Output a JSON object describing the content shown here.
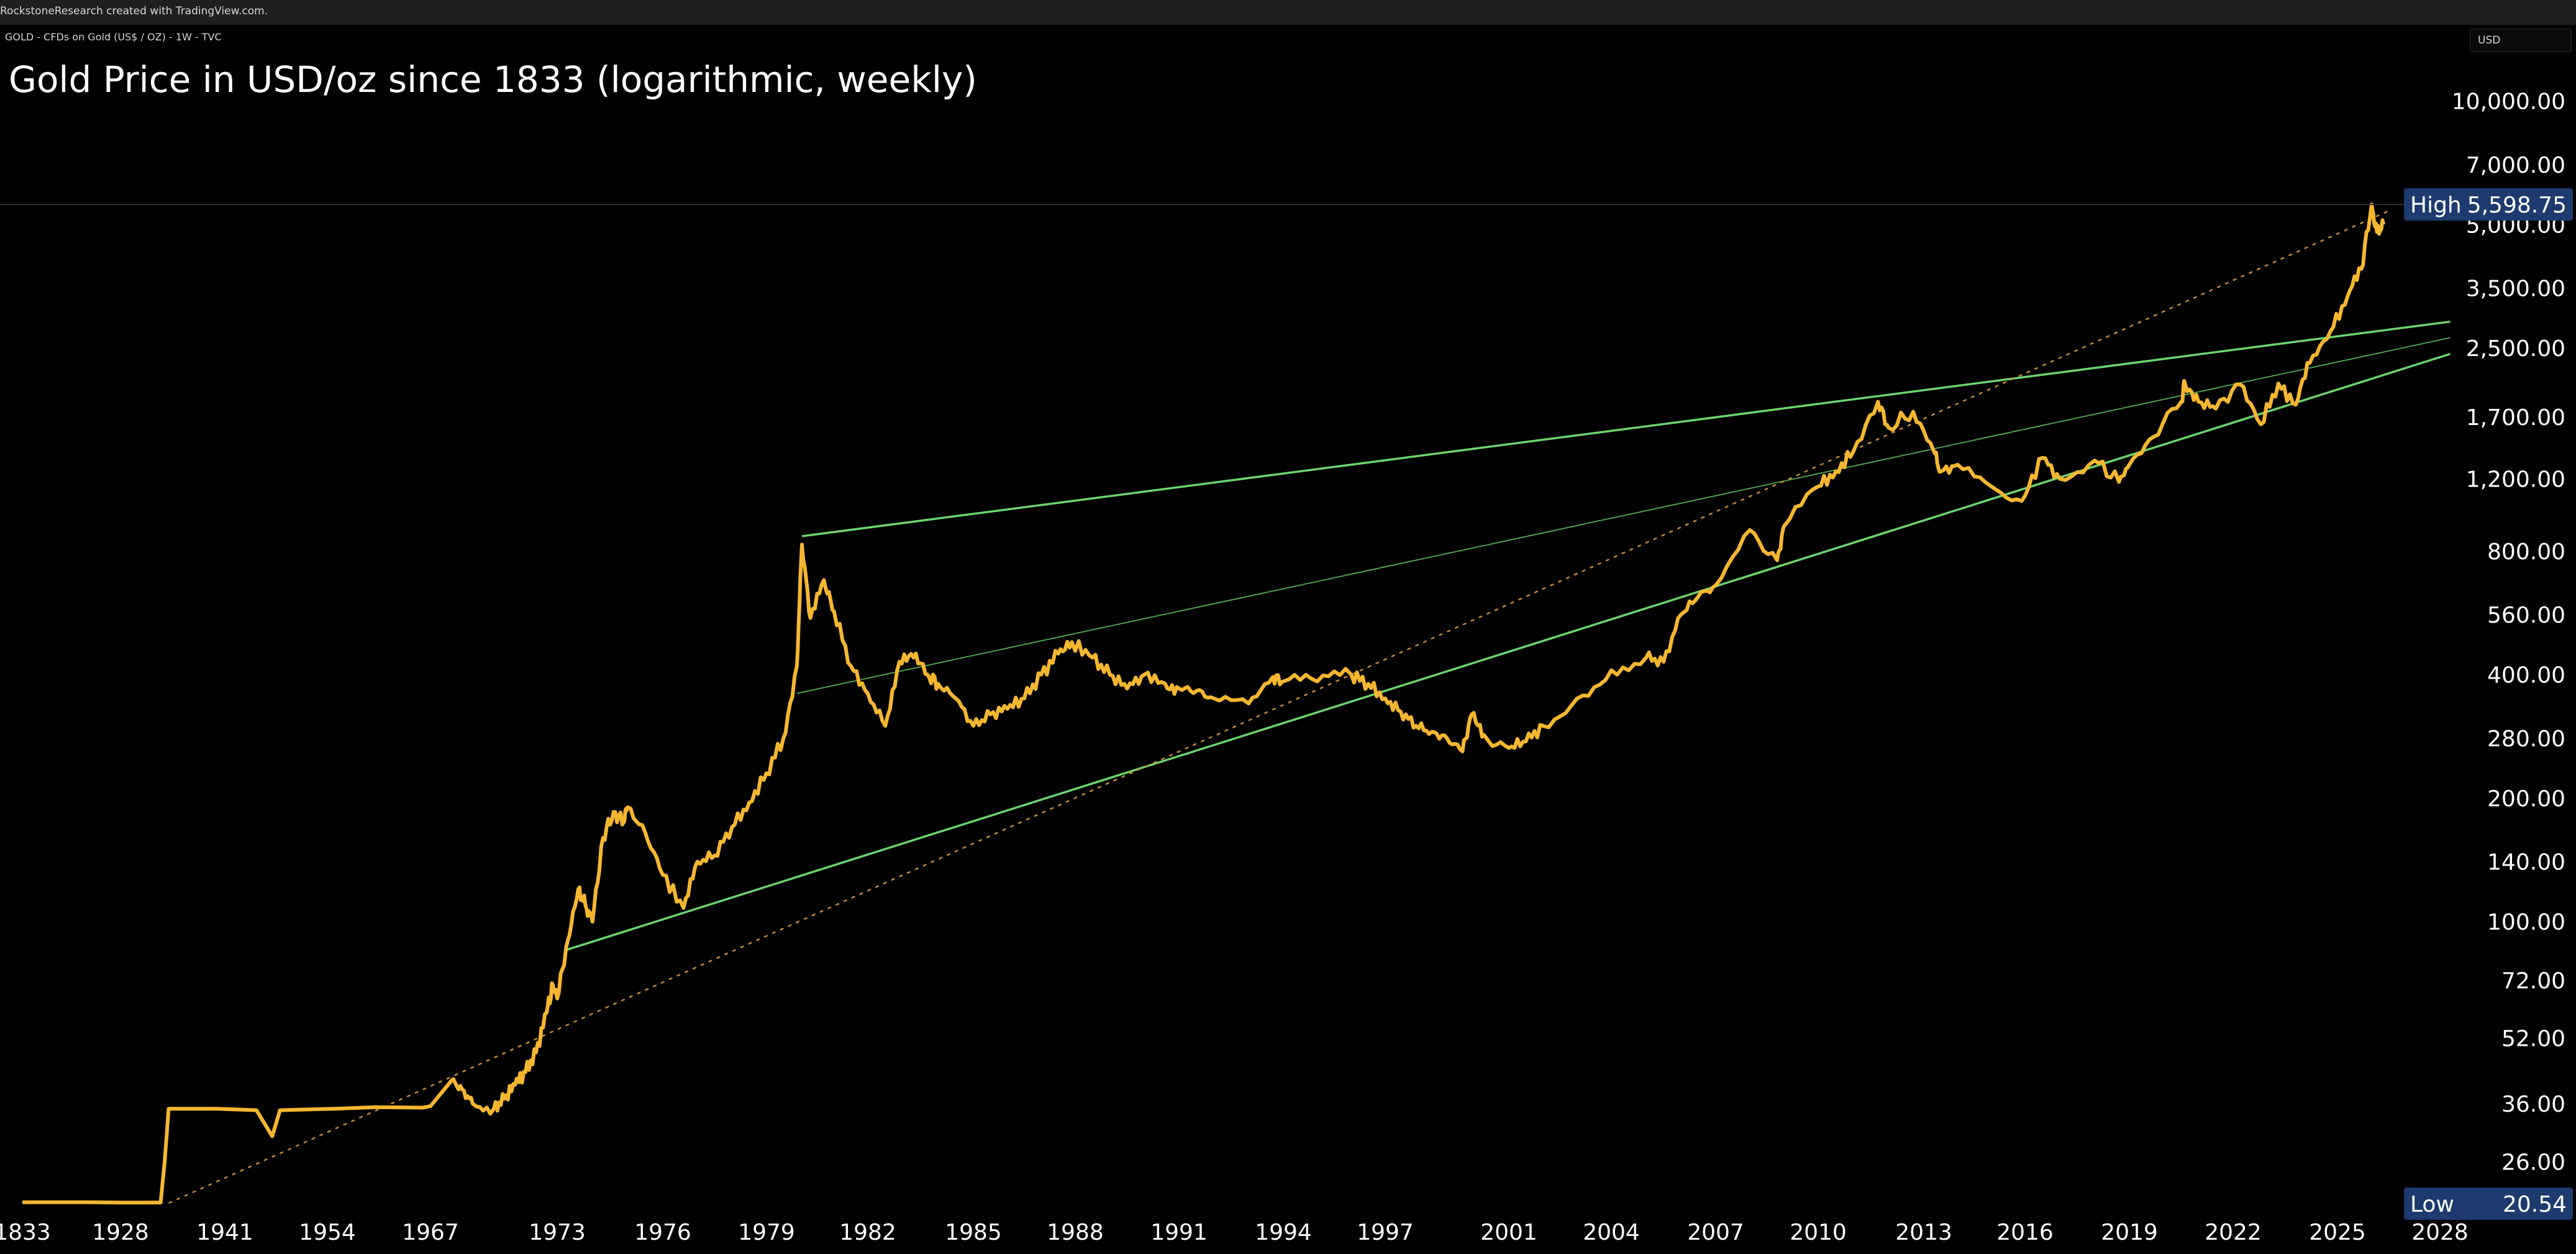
{
  "header": {
    "credit": "RockstoneResearch created with TradingView.com.",
    "symbol_line": "GOLD - CFDs on Gold (US$ / OZ) - 1W - TVC",
    "currency": "USD"
  },
  "chart_data": {
    "type": "line",
    "title": "Gold Price in USD/oz since 1833 (logarithmic, weekly)",
    "y_scale": "log",
    "ylim": [
      20,
      12000
    ],
    "y_ticks": [
      "10,000.00",
      "7,000.00",
      "5,000.00",
      "3,500.00",
      "2,500.00",
      "1,700.00",
      "1,200.00",
      "800.00",
      "560.00",
      "400.00",
      "280.00",
      "200.00",
      "140.00",
      "100.00",
      "72.00",
      "52.00",
      "36.00",
      "26.00"
    ],
    "x_ticks": [
      "1833",
      "1928",
      "1941",
      "1954",
      "1967",
      "1973",
      "1976",
      "1979",
      "1982",
      "1985",
      "1988",
      "1991",
      "1994",
      "1997",
      "2001",
      "2004",
      "2007",
      "2010",
      "2013",
      "2016",
      "2019",
      "2022",
      "2025",
      "2028"
    ],
    "high": {
      "label": "High",
      "value": "5,598.75"
    },
    "low": {
      "label": "Low",
      "value": "20.54"
    },
    "series": [
      {
        "color": "#f5b731",
        "points": [
          [
            1833,
            20.7
          ],
          [
            1900,
            20.7
          ],
          [
            1928,
            20.67
          ],
          [
            1933,
            20.67
          ],
          [
            1933.5,
            26
          ],
          [
            1934,
            35
          ],
          [
            1940,
            35
          ],
          [
            1945,
            34.7
          ],
          [
            1947,
            30
          ],
          [
            1948,
            34.7
          ],
          [
            1955,
            35
          ],
          [
            1960,
            35.3
          ],
          [
            1966,
            35.2
          ],
          [
            1967,
            35.5
          ],
          [
            1968,
            41
          ],
          [
            1968.5,
            39
          ],
          [
            1969,
            36
          ],
          [
            1970,
            35
          ],
          [
            1970.5,
            37
          ],
          [
            1971,
            40
          ],
          [
            1971.5,
            43
          ],
          [
            1972,
            48
          ],
          [
            1972.5,
            60
          ],
          [
            1972.8,
            70
          ],
          [
            1973,
            65
          ],
          [
            1973.3,
            90
          ],
          [
            1973.6,
            120
          ],
          [
            1973.8,
            110
          ],
          [
            1974,
            100
          ],
          [
            1974.3,
            160
          ],
          [
            1974.6,
            185
          ],
          [
            1974.9,
            175
          ],
          [
            1975,
            190
          ],
          [
            1975.5,
            165
          ],
          [
            1976,
            130
          ],
          [
            1976.6,
            108
          ],
          [
            1977,
            140
          ],
          [
            1977.5,
            145
          ],
          [
            1978,
            170
          ],
          [
            1978.5,
            195
          ],
          [
            1979,
            230
          ],
          [
            1979.5,
            280
          ],
          [
            1979.9,
            420
          ],
          [
            1980.05,
            830
          ],
          [
            1980.3,
            550
          ],
          [
            1980.7,
            680
          ],
          [
            1981,
            570
          ],
          [
            1981.5,
            420
          ],
          [
            1982,
            360
          ],
          [
            1982.5,
            300
          ],
          [
            1982.9,
            430
          ],
          [
            1983.3,
            440
          ],
          [
            1983.7,
            400
          ],
          [
            1984,
            380
          ],
          [
            1984.5,
            350
          ],
          [
            1985,
            300
          ],
          [
            1985.5,
            320
          ],
          [
            1986,
            330
          ],
          [
            1986.5,
            350
          ],
          [
            1987,
            400
          ],
          [
            1987.5,
            450
          ],
          [
            1987.9,
            480
          ],
          [
            1988.5,
            440
          ],
          [
            1989,
            400
          ],
          [
            1989.5,
            370
          ],
          [
            1990,
            400
          ],
          [
            1990.6,
            380
          ],
          [
            1991,
            370
          ],
          [
            1991.5,
            365
          ],
          [
            1992,
            350
          ],
          [
            1993,
            340
          ],
          [
            1993.7,
            395
          ],
          [
            1994,
            385
          ],
          [
            1995,
            385
          ],
          [
            1996,
            400
          ],
          [
            1996.5,
            380
          ],
          [
            1997,
            350
          ],
          [
            1997.5,
            325
          ],
          [
            1998,
            300
          ],
          [
            1998.5,
            290
          ],
          [
            1999,
            280
          ],
          [
            1999.5,
            260
          ],
          [
            1999.8,
            320
          ],
          [
            2000.2,
            285
          ],
          [
            2001,
            265
          ],
          [
            2001.5,
            275
          ],
          [
            2002,
            300
          ],
          [
            2003,
            350
          ],
          [
            2004,
            410
          ],
          [
            2005,
            440
          ],
          [
            2005.5,
            430
          ],
          [
            2006,
            560
          ],
          [
            2006.5,
            620
          ],
          [
            2007,
            660
          ],
          [
            2008,
            900
          ],
          [
            2008.8,
            760
          ],
          [
            2009,
            920
          ],
          [
            2010,
            1150
          ],
          [
            2010.5,
            1250
          ],
          [
            2011,
            1400
          ],
          [
            2011.7,
            1850
          ],
          [
            2012,
            1600
          ],
          [
            2012.7,
            1750
          ],
          [
            2013.3,
            1400
          ],
          [
            2013.5,
            1250
          ],
          [
            2014,
            1300
          ],
          [
            2015,
            1150
          ],
          [
            2015.9,
            1060
          ],
          [
            2016.5,
            1350
          ],
          [
            2017,
            1200
          ],
          [
            2018,
            1330
          ],
          [
            2018.7,
            1180
          ],
          [
            2019,
            1300
          ],
          [
            2019.7,
            1520
          ],
          [
            2020.5,
            1850
          ],
          [
            2020.6,
            2060
          ],
          [
            2021,
            1850
          ],
          [
            2021.5,
            1780
          ],
          [
            2022.2,
            2040
          ],
          [
            2022.8,
            1630
          ],
          [
            2023.3,
            2050
          ],
          [
            2023.8,
            1820
          ],
          [
            2024.2,
            2300
          ],
          [
            2024.8,
            2750
          ],
          [
            2025.3,
            3350
          ],
          [
            2025.7,
            3900
          ],
          [
            2026,
            5598.75
          ],
          [
            2026.15,
            4800
          ],
          [
            2026.35,
            5000
          ]
        ]
      }
    ],
    "trendlines": [
      {
        "color": "#6dd36d",
        "from": [
          1980.05,
          870
        ],
        "to": [
          2028.3,
          2900
        ]
      },
      {
        "color": "#6dd36d",
        "from": [
          1973.2,
          85
        ],
        "to": [
          2028.3,
          2420
        ]
      },
      {
        "color": "#4e9e4e",
        "from": [
          1979.9,
          360
        ],
        "to": [
          2028.3,
          2650
        ]
      },
      {
        "color": "#c08a3a",
        "from": [
          1934,
          20.6
        ],
        "to": [
          2026.5,
          5400
        ]
      }
    ]
  }
}
